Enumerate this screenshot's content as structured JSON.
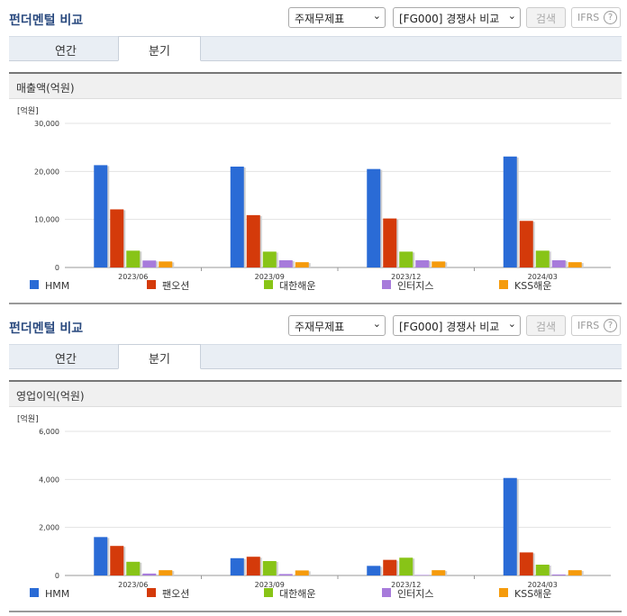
{
  "sections": [
    {
      "title": "펀더멘털 비교",
      "select_a": "주재무제표",
      "select_b": "[FG000] 경쟁사 비교",
      "search_label": "검색",
      "ifrs_label": "IFRS",
      "ifrs_help": "?",
      "tabs": [
        {
          "label": "연간"
        },
        {
          "label": "분기"
        }
      ],
      "active_tab": "분기",
      "metric_label": "매출액(억원)"
    },
    {
      "title": "펀더멘털 비교",
      "select_a": "주재무제표",
      "select_b": "[FG000] 경쟁사 비교",
      "search_label": "검색",
      "ifrs_label": "IFRS",
      "ifrs_help": "?",
      "tabs": [
        {
          "label": "연간"
        },
        {
          "label": "분기"
        }
      ],
      "active_tab": "분기",
      "metric_label": "영업이익(억원)"
    }
  ],
  "chart_data": [
    {
      "type": "bar",
      "unit_label": "[억원]",
      "categories": [
        "2023/06",
        "2023/09",
        "2023/12",
        "2024/03"
      ],
      "ylim": [
        0,
        30000
      ],
      "yticks": [
        0,
        10000,
        20000,
        30000
      ],
      "ytick_labels": [
        "0",
        "10,000",
        "20,000",
        "30,000"
      ],
      "grid": true,
      "legend_position": "bottom",
      "series": [
        {
          "name": "HMM",
          "color": "#2a6bd6",
          "values": [
            21300,
            21000,
            20500,
            23100
          ]
        },
        {
          "name": "팬오션",
          "color": "#d43a0a",
          "values": [
            12100,
            10900,
            10200,
            9700
          ]
        },
        {
          "name": "대한해운",
          "color": "#88c417",
          "values": [
            3500,
            3300,
            3300,
            3500
          ]
        },
        {
          "name": "인터지스",
          "color": "#a77bdb",
          "values": [
            1450,
            1500,
            1500,
            1500
          ]
        },
        {
          "name": "KSS해운",
          "color": "#f59b0c",
          "values": [
            1250,
            1100,
            1250,
            1100
          ]
        }
      ]
    },
    {
      "type": "bar",
      "unit_label": "[억원]",
      "categories": [
        "2023/06",
        "2023/09",
        "2023/12",
        "2024/03"
      ],
      "ylim": [
        0,
        6000
      ],
      "yticks": [
        0,
        2000,
        4000,
        6000
      ],
      "ytick_labels": [
        "0",
        "2,000",
        "4,000",
        "6,000"
      ],
      "grid": true,
      "legend_position": "bottom",
      "series": [
        {
          "name": "HMM",
          "color": "#2a6bd6",
          "values": [
            1600,
            720,
            400,
            4060
          ]
        },
        {
          "name": "팬오션",
          "color": "#d43a0a",
          "values": [
            1230,
            780,
            650,
            960
          ]
        },
        {
          "name": "대한해운",
          "color": "#88c417",
          "values": [
            570,
            600,
            740,
            450
          ]
        },
        {
          "name": "인터지스",
          "color": "#a77bdb",
          "values": [
            80,
            60,
            20,
            40
          ]
        },
        {
          "name": "KSS해운",
          "color": "#f59b0c",
          "values": [
            220,
            210,
            220,
            220
          ]
        }
      ]
    }
  ]
}
